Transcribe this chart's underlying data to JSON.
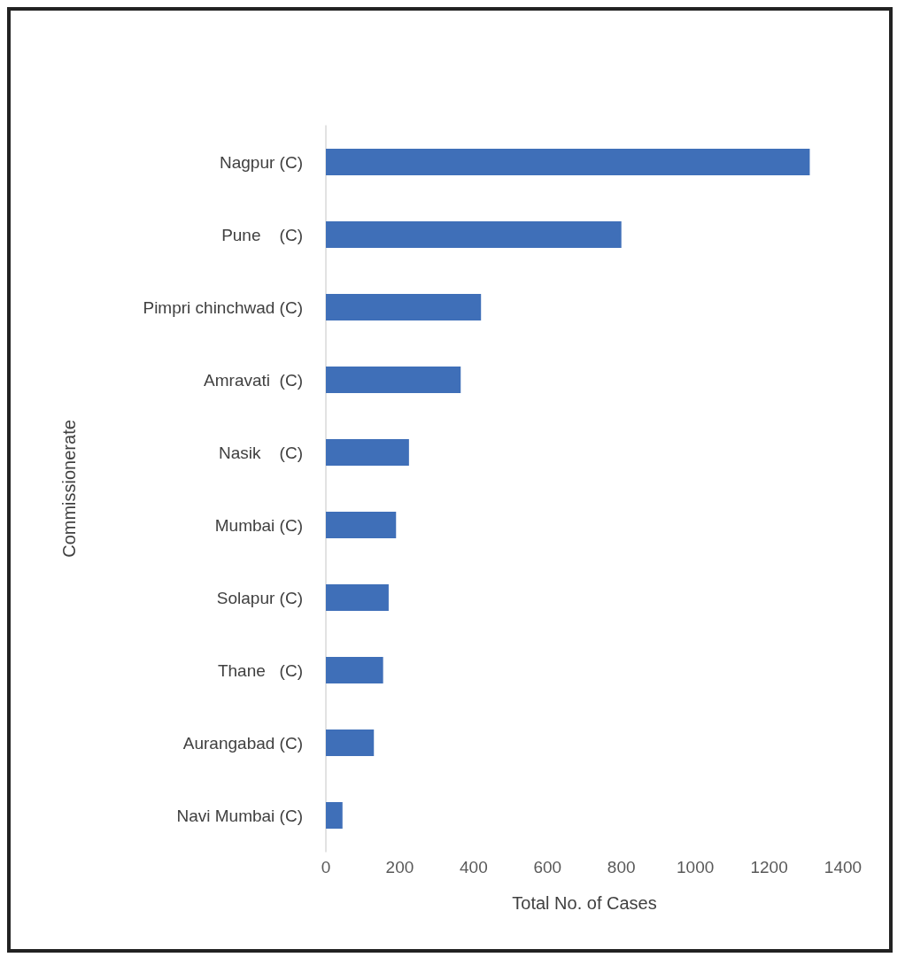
{
  "chart_data": {
    "type": "bar",
    "orientation": "horizontal",
    "xlabel": "Total No. of Cases",
    "ylabel": "Commissionerate",
    "categories": [
      "Nagpur (C)",
      "Pune    (C)",
      "Pimpri chinchwad (C)",
      "Amravati  (C)",
      "Nasik    (C)",
      "Mumbai (C)",
      "Solapur (C)",
      "Thane   (C)",
      "Aurangabad (C)",
      "Navi Mumbai (C)"
    ],
    "values": [
      1310,
      800,
      420,
      365,
      225,
      190,
      170,
      155,
      130,
      45
    ],
    "color": "#3f6fb8",
    "xlim": [
      0,
      1400
    ],
    "xticks": [
      0,
      200,
      400,
      600,
      800,
      1000,
      1200,
      1400
    ],
    "grid": false
  }
}
